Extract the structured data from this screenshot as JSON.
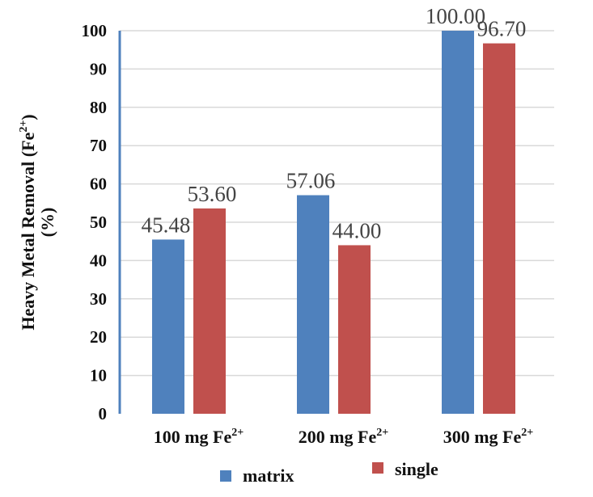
{
  "chart_data": {
    "type": "bar",
    "title": "",
    "xlabel": "",
    "ylabel": "Heavy Metal Removal (Fe2+) (%)",
    "ylabel_line1": "Heavy Metal Removal (Fe",
    "ylabel_sup": "2+",
    "ylabel_close": ")",
    "ylabel_line2": "(%)",
    "ylim": [
      0,
      100
    ],
    "yticks": [
      "0",
      "10",
      "20",
      "30",
      "40",
      "50",
      "60",
      "70",
      "80",
      "90",
      "100"
    ],
    "grid": true,
    "categories": [
      "100 mg Fe2+",
      "200 mg Fe2+",
      "300 mg Fe2+"
    ],
    "category_labels": [
      {
        "base": "100 mg Fe",
        "sup": "2+"
      },
      {
        "base": "200 mg Fe",
        "sup": "2+"
      },
      {
        "base": "300 mg Fe",
        "sup": "2+"
      }
    ],
    "series": [
      {
        "name": "matrix",
        "color": "#4f81bd",
        "values": [
          45.48,
          57.06,
          100.0
        ],
        "labels": [
          "45.48",
          "57.06",
          "100.00"
        ]
      },
      {
        "name": "single",
        "color": "#c0504d",
        "values": [
          53.6,
          44.0,
          96.7
        ],
        "labels": [
          "53.60",
          "44.00",
          "96.70"
        ]
      }
    ],
    "legend_position": "bottom"
  }
}
